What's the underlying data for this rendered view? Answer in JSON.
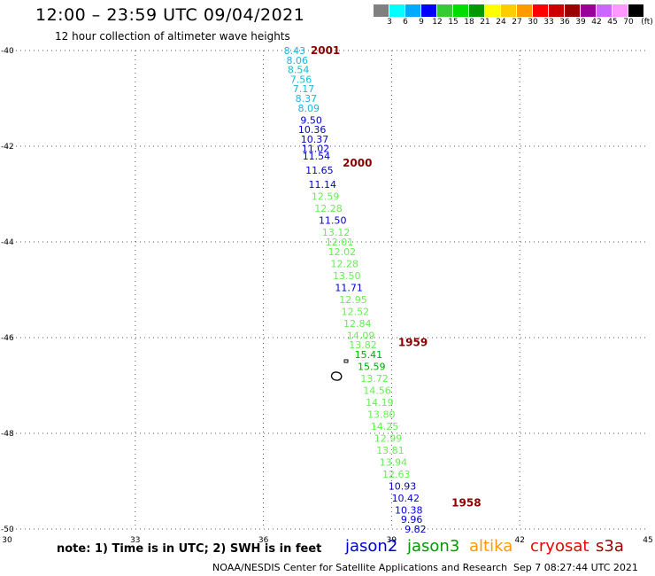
{
  "header": {
    "title": "12:00 – 23:59 UTC 09/04/2021",
    "subtitle": "12 hour collection of altimeter wave heights"
  },
  "colors": {
    "cyan": "#1ab5d8",
    "blue": "#0000cc",
    "lightgreen": "#66ee55",
    "green": "#00aa00",
    "darkred": "#880000",
    "grid": "#555555"
  },
  "color_scale": {
    "labels": [
      "3",
      "6",
      "9",
      "12",
      "15",
      "18",
      "21",
      "24",
      "27",
      "30",
      "33",
      "36",
      "39",
      "42",
      "45",
      "70"
    ],
    "unit": "(ft)",
    "colors": [
      "#808080",
      "#00ffff",
      "#00aaff",
      "#0000ff",
      "#33cc33",
      "#00dd00",
      "#009900",
      "#ffff00",
      "#ffcc00",
      "#ff9900",
      "#ff0000",
      "#cc0000",
      "#990000",
      "#990099",
      "#cc66ff",
      "#ff99ff",
      "#000000"
    ]
  },
  "footer": {
    "note": "note:  1) Time is in UTC;  2) SWH is in feet",
    "credit": "NOAA/NESDIS Center for Satellite Applications and Research",
    "timestamp": "Sep  7 08:27:44 UTC 2021"
  },
  "legend": {
    "jason2": "jason2",
    "jason3": "jason3",
    "altika": "altika",
    "cryosat": "cryosat",
    "s3a": "s3a"
  },
  "chart_data": {
    "type": "scatter",
    "xlim": [
      30,
      45
    ],
    "ylim": [
      -50,
      -40
    ],
    "x_ticks": [
      "30",
      "33",
      "36",
      "39",
      "42",
      "45"
    ],
    "y_ticks": [
      "-40",
      "-42",
      "-44",
      "-46",
      "-48",
      "-50"
    ],
    "grid": true,
    "points": [
      {
        "lon": 36.73,
        "lat": -40.0,
        "value": "8.43",
        "color": "cyan"
      },
      {
        "lon": 36.79,
        "lat": -40.2,
        "value": "8.06",
        "color": "cyan"
      },
      {
        "lon": 36.82,
        "lat": -40.4,
        "value": "8.54",
        "color": "cyan"
      },
      {
        "lon": 36.88,
        "lat": -40.6,
        "value": "7.56",
        "color": "cyan"
      },
      {
        "lon": 36.94,
        "lat": -40.8,
        "value": "7.17",
        "color": "cyan"
      },
      {
        "lon": 37.0,
        "lat": -41.0,
        "value": "8.37",
        "color": "cyan"
      },
      {
        "lon": 37.06,
        "lat": -41.2,
        "value": "8.09",
        "color": "cyan"
      },
      {
        "lon": 37.12,
        "lat": -41.45,
        "value": "9.50",
        "color": "blue"
      },
      {
        "lon": 37.14,
        "lat": -41.65,
        "value": "10.36",
        "color": "blue"
      },
      {
        "lon": 37.2,
        "lat": -41.85,
        "value": "10.37",
        "color": "blue"
      },
      {
        "lon": 37.22,
        "lat": -42.05,
        "value": "11.02",
        "color": "blue"
      },
      {
        "lon": 37.24,
        "lat": -42.2,
        "value": "11.54",
        "color": "blue"
      },
      {
        "lon": 37.31,
        "lat": -42.5,
        "value": "11.65",
        "color": "blue"
      },
      {
        "lon": 37.38,
        "lat": -42.8,
        "value": "11.14",
        "color": "blue"
      },
      {
        "lon": 37.45,
        "lat": -43.05,
        "value": "12.59",
        "color": "lightgreen"
      },
      {
        "lon": 37.52,
        "lat": -43.3,
        "value": "12.28",
        "color": "lightgreen"
      },
      {
        "lon": 37.62,
        "lat": -43.55,
        "value": "11.50",
        "color": "blue"
      },
      {
        "lon": 37.7,
        "lat": -43.8,
        "value": "13.12",
        "color": "lightgreen"
      },
      {
        "lon": 37.78,
        "lat": -44.0,
        "value": "12.01",
        "color": "lightgreen"
      },
      {
        "lon": 37.84,
        "lat": -44.2,
        "value": "12.02",
        "color": "lightgreen"
      },
      {
        "lon": 37.9,
        "lat": -44.45,
        "value": "12.28",
        "color": "lightgreen"
      },
      {
        "lon": 37.95,
        "lat": -44.7,
        "value": "13.50",
        "color": "lightgreen"
      },
      {
        "lon": 38.0,
        "lat": -44.95,
        "value": "11.71",
        "color": "blue"
      },
      {
        "lon": 38.1,
        "lat": -45.2,
        "value": "12.95",
        "color": "lightgreen"
      },
      {
        "lon": 38.15,
        "lat": -45.45,
        "value": "12.52",
        "color": "lightgreen"
      },
      {
        "lon": 38.2,
        "lat": -45.7,
        "value": "12.84",
        "color": "lightgreen"
      },
      {
        "lon": 38.28,
        "lat": -45.95,
        "value": "14.09",
        "color": "lightgreen"
      },
      {
        "lon": 38.33,
        "lat": -46.15,
        "value": "13.82",
        "color": "lightgreen"
      },
      {
        "lon": 38.46,
        "lat": -46.35,
        "value": "15.41",
        "color": "green"
      },
      {
        "lon": 38.53,
        "lat": -46.6,
        "value": "15.59",
        "color": "green"
      },
      {
        "lon": 38.6,
        "lat": -46.85,
        "value": "13.72",
        "color": "lightgreen"
      },
      {
        "lon": 38.66,
        "lat": -47.1,
        "value": "14.56",
        "color": "lightgreen"
      },
      {
        "lon": 38.72,
        "lat": -47.35,
        "value": "14.19",
        "color": "lightgreen"
      },
      {
        "lon": 38.76,
        "lat": -47.6,
        "value": "13.80",
        "color": "lightgreen"
      },
      {
        "lon": 38.84,
        "lat": -47.85,
        "value": "14.25",
        "color": "lightgreen"
      },
      {
        "lon": 38.92,
        "lat": -48.1,
        "value": "12.99",
        "color": "lightgreen"
      },
      {
        "lon": 38.97,
        "lat": -48.35,
        "value": "13.81",
        "color": "lightgreen"
      },
      {
        "lon": 39.04,
        "lat": -48.6,
        "value": "13.94",
        "color": "lightgreen"
      },
      {
        "lon": 39.11,
        "lat": -48.85,
        "value": "12.63",
        "color": "lightgreen"
      },
      {
        "lon": 39.25,
        "lat": -49.1,
        "value": "10.93",
        "color": "blue"
      },
      {
        "lon": 39.33,
        "lat": -49.35,
        "value": "10.42",
        "color": "blue"
      },
      {
        "lon": 39.4,
        "lat": -49.6,
        "value": "10.38",
        "color": "blue"
      },
      {
        "lon": 39.47,
        "lat": -49.8,
        "value": "9.96",
        "color": "blue"
      },
      {
        "lon": 39.56,
        "lat": -50.0,
        "value": "9.82",
        "color": "blue"
      }
    ],
    "time_labels": [
      {
        "lon": 37.45,
        "lat": -40.0,
        "value": "2001"
      },
      {
        "lon": 38.2,
        "lat": -42.35,
        "value": "2000"
      },
      {
        "lon": 39.5,
        "lat": -46.1,
        "value": "1959"
      },
      {
        "lon": 40.75,
        "lat": -49.45,
        "value": "1958"
      }
    ]
  }
}
